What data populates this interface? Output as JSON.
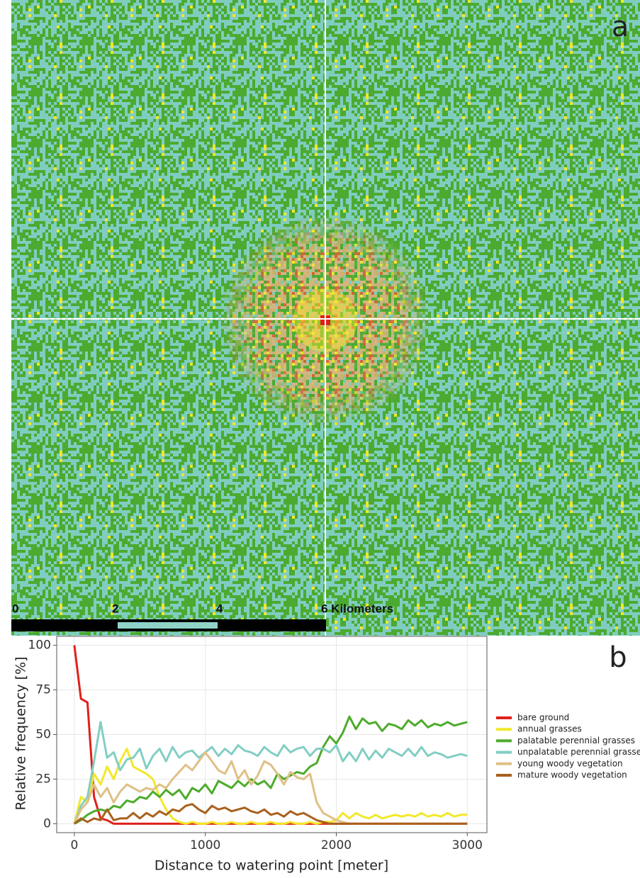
{
  "map": {
    "panel_label": "a",
    "scale_bar": {
      "labels": [
        "0",
        "2",
        "4",
        "6 Kilometers"
      ]
    }
  },
  "chart_data": {
    "type": "line",
    "panel_label": "b",
    "x_label": "Distance to watering point [meter]",
    "y_label": "Relative frequency [%]",
    "xlim": [
      -135,
      3150
    ],
    "ylim": [
      -5,
      105
    ],
    "xticks": [
      0,
      1000,
      2000,
      3000
    ],
    "yticks": [
      0,
      25,
      50,
      75,
      100
    ],
    "grid": true,
    "legend": "right",
    "x": [
      0,
      50,
      100,
      150,
      200,
      250,
      300,
      350,
      400,
      450,
      500,
      550,
      600,
      650,
      700,
      750,
      800,
      850,
      900,
      950,
      1000,
      1050,
      1100,
      1150,
      1200,
      1250,
      1300,
      1350,
      1400,
      1450,
      1500,
      1550,
      1600,
      1650,
      1700,
      1750,
      1800,
      1850,
      1900,
      1950,
      2000,
      2050,
      2100,
      2150,
      2200,
      2250,
      2300,
      2350,
      2400,
      2450,
      2500,
      2550,
      2600,
      2650,
      2700,
      2750,
      2800,
      2850,
      2900,
      2950,
      3000
    ],
    "series": [
      {
        "name": "bare ground",
        "color": "#e0201b",
        "values": [
          100,
          70,
          68,
          15,
          3,
          2,
          0,
          0,
          0,
          0,
          0,
          0,
          0,
          0,
          0,
          0,
          0,
          0,
          0,
          0,
          0,
          0,
          0,
          0,
          0,
          0,
          0,
          0,
          0,
          0,
          0,
          0,
          0,
          0,
          0,
          0,
          0,
          0,
          0,
          0,
          0,
          0,
          0,
          0,
          0,
          0,
          0,
          0,
          0,
          0,
          0,
          0,
          0,
          0,
          0,
          0,
          0,
          0,
          0,
          0,
          0
        ]
      },
      {
        "name": "annual grasses",
        "color": "#f2e82a",
        "values": [
          0,
          15,
          12,
          28,
          22,
          32,
          25,
          35,
          42,
          32,
          30,
          28,
          25,
          15,
          8,
          3,
          1,
          0,
          1,
          0,
          0,
          1,
          0,
          0,
          1,
          0,
          0,
          1,
          0,
          0,
          1,
          0,
          0,
          1,
          0,
          0,
          1,
          0,
          1,
          1,
          2,
          6,
          3,
          6,
          4,
          3,
          5,
          3,
          4,
          5,
          4,
          5,
          4,
          6,
          4,
          5,
          4,
          6,
          4,
          5,
          5
        ]
      },
      {
        "name": "palatable perennial grasses",
        "color": "#4dab2b",
        "values": [
          0,
          2,
          5,
          7,
          8,
          7,
          10,
          9,
          13,
          12,
          15,
          14,
          18,
          15,
          19,
          16,
          19,
          14,
          20,
          18,
          22,
          17,
          24,
          22,
          20,
          24,
          21,
          25,
          22,
          24,
          20,
          28,
          25,
          27,
          29,
          28,
          32,
          34,
          43,
          49,
          45,
          51,
          60,
          53,
          59,
          56,
          57,
          52,
          56,
          55,
          53,
          58,
          55,
          58,
          54,
          56,
          55,
          57,
          55,
          56,
          57
        ]
      },
      {
        "name": "unpalatable perennial grasses",
        "color": "#82cec3",
        "values": [
          0,
          10,
          15,
          35,
          57,
          37,
          40,
          30,
          36,
          37,
          42,
          31,
          38,
          42,
          35,
          43,
          37,
          40,
          41,
          37,
          40,
          43,
          38,
          42,
          39,
          44,
          41,
          40,
          38,
          43,
          40,
          38,
          44,
          40,
          42,
          43,
          38,
          42,
          42,
          40,
          44,
          35,
          40,
          35,
          42,
          36,
          41,
          37,
          42,
          40,
          38,
          42,
          38,
          43,
          38,
          40,
          39,
          37,
          38,
          39,
          38
        ]
      },
      {
        "name": "young woody vegetation",
        "color": "#dfc086",
        "values": [
          0,
          8,
          12,
          22,
          15,
          20,
          12,
          18,
          22,
          20,
          18,
          20,
          19,
          22,
          20,
          25,
          29,
          33,
          30,
          35,
          40,
          35,
          30,
          28,
          35,
          25,
          30,
          22,
          27,
          35,
          33,
          28,
          22,
          29,
          26,
          25,
          28,
          12,
          6,
          4,
          2,
          1,
          0,
          0,
          0,
          0,
          0,
          0,
          0,
          0,
          0,
          0,
          0,
          0,
          0,
          0,
          0,
          0,
          0,
          0,
          0
        ]
      },
      {
        "name": "mature woody vegetation",
        "color": "#a9611d",
        "values": [
          0,
          3,
          1,
          3,
          2,
          8,
          2,
          3,
          3,
          6,
          3,
          6,
          4,
          7,
          5,
          8,
          7,
          10,
          11,
          8,
          6,
          10,
          8,
          9,
          7,
          8,
          9,
          7,
          6,
          8,
          5,
          6,
          4,
          7,
          5,
          6,
          4,
          2,
          1,
          0,
          0,
          0,
          0,
          0,
          0,
          0,
          0,
          0,
          0,
          0,
          0,
          0,
          0,
          0,
          0,
          0,
          0,
          0,
          0,
          0,
          0
        ]
      }
    ]
  }
}
